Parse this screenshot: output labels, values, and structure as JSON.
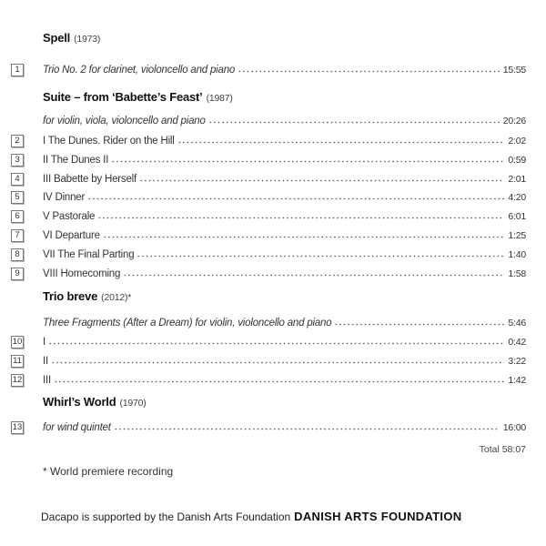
{
  "works": [
    {
      "title": "Spell",
      "year": "(1973)",
      "rows": [
        {
          "num": "1",
          "text": "Trio No. 2 for clarinet, violoncello and piano",
          "italic": true,
          "time": "15:55"
        }
      ]
    },
    {
      "title": "Suite – from ‘Babette’s Feast’",
      "year": "(1987)",
      "rows": [
        {
          "num": "",
          "text": "for violin, viola, violoncello and piano",
          "italic": true,
          "time": "20:26"
        },
        {
          "num": "2",
          "text": "I The Dunes. Rider on the Hill",
          "italic": false,
          "time": "2:02"
        },
        {
          "num": "3",
          "text": "II The Dunes II",
          "italic": false,
          "time": "0:59"
        },
        {
          "num": "4",
          "text": "III Babette by Herself",
          "italic": false,
          "time": "2:01"
        },
        {
          "num": "5",
          "text": "IV Dinner",
          "italic": false,
          "time": "4:20"
        },
        {
          "num": "6",
          "text": "V Pastorale",
          "italic": false,
          "time": "6:01"
        },
        {
          "num": "7",
          "text": "VI Departure",
          "italic": false,
          "time": "1:25"
        },
        {
          "num": "8",
          "text": "VII The Final Parting",
          "italic": false,
          "time": "1:40"
        },
        {
          "num": "9",
          "text": "VIII Homecoming",
          "italic": false,
          "time": "1:58"
        }
      ]
    },
    {
      "title": "Trio breve",
      "year": "(2012)*",
      "rows": [
        {
          "num": "",
          "text": "Three Fragments (After a Dream) for violin, violoncello and piano",
          "italic": true,
          "time": "5:46"
        },
        {
          "num": "10",
          "text": "I",
          "italic": false,
          "time": "0:42"
        },
        {
          "num": "11",
          "text": "II",
          "italic": false,
          "time": "3:22"
        },
        {
          "num": "12",
          "text": "III",
          "italic": false,
          "time": "1:42"
        }
      ]
    },
    {
      "title": "Whirl’s World",
      "year": "(1970)",
      "rows": [
        {
          "num": "13",
          "text": "for wind quintet",
          "italic": true,
          "time": "16:00"
        }
      ]
    }
  ],
  "total": "Total 58:07",
  "footnote": "* World premiere recording",
  "footer": {
    "text": "Dacapo is supported by the Danish Arts Foundation",
    "logo": "DANISH ARTS FOUNDATION"
  }
}
